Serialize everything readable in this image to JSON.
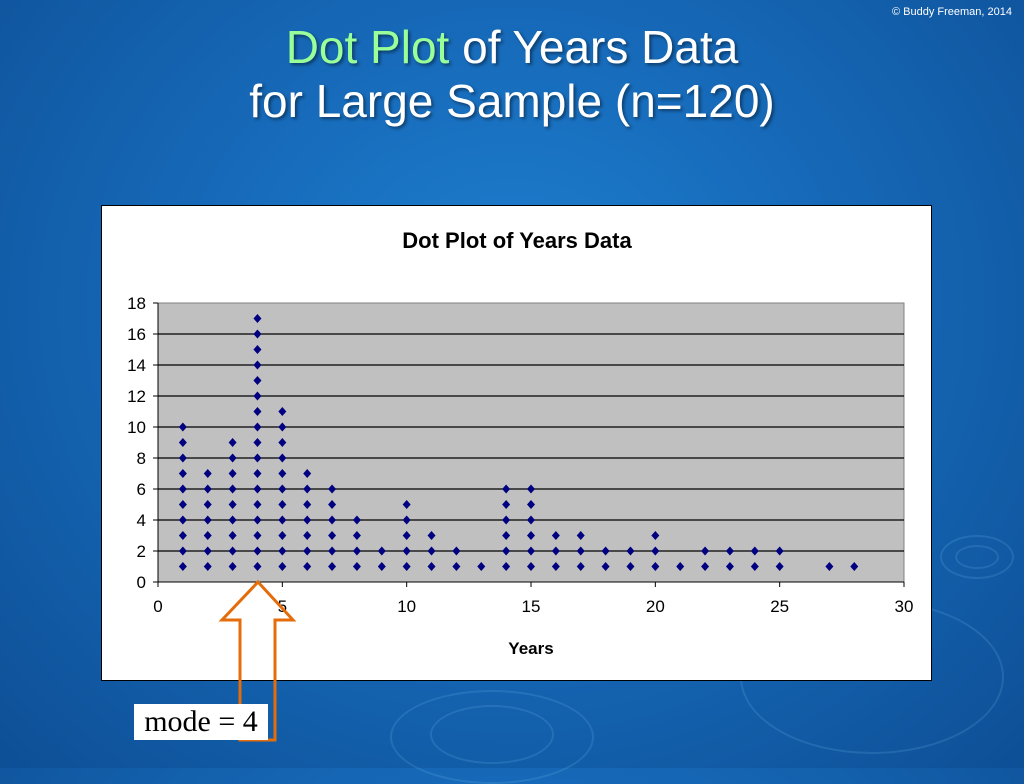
{
  "copyright": "© Buddy Freeman, 2014",
  "slide": {
    "title_highlight": "Dot Plot",
    "title_rest": " of Years Data",
    "title_line2": "for Large Sample (n=120)"
  },
  "annotation": {
    "mode_label": "mode = 4",
    "arrow_color": "#e46c0a"
  },
  "colors": {
    "title_highlight": "#99ff99",
    "plot_area": "#c0c0c0",
    "marker": "#000080"
  },
  "chart_data": {
    "type": "scatter",
    "title": "Dot Plot of Years Data",
    "xlabel": "Years",
    "ylabel": "",
    "xlim": [
      0,
      30
    ],
    "ylim": [
      0,
      18
    ],
    "xticks": [
      0,
      5,
      10,
      15,
      20,
      25,
      30
    ],
    "yticks": [
      0,
      2,
      4,
      6,
      8,
      10,
      12,
      14,
      16,
      18
    ],
    "grid": "horizontal",
    "marker": "diamond",
    "counts": [
      {
        "x": 1,
        "count": 10
      },
      {
        "x": 2,
        "count": 7
      },
      {
        "x": 3,
        "count": 9
      },
      {
        "x": 4,
        "count": 17
      },
      {
        "x": 5,
        "count": 11
      },
      {
        "x": 6,
        "count": 7
      },
      {
        "x": 7,
        "count": 6
      },
      {
        "x": 8,
        "count": 4
      },
      {
        "x": 9,
        "count": 2
      },
      {
        "x": 10,
        "count": 5
      },
      {
        "x": 11,
        "count": 3
      },
      {
        "x": 12,
        "count": 2
      },
      {
        "x": 13,
        "count": 1
      },
      {
        "x": 14,
        "count": 6
      },
      {
        "x": 15,
        "count": 6
      },
      {
        "x": 16,
        "count": 3
      },
      {
        "x": 17,
        "count": 3
      },
      {
        "x": 18,
        "count": 2
      },
      {
        "x": 19,
        "count": 2
      },
      {
        "x": 20,
        "count": 3
      },
      {
        "x": 21,
        "count": 1
      },
      {
        "x": 22,
        "count": 2
      },
      {
        "x": 23,
        "count": 2
      },
      {
        "x": 24,
        "count": 2
      },
      {
        "x": 25,
        "count": 2
      },
      {
        "x": 27,
        "count": 1
      },
      {
        "x": 28,
        "count": 1
      }
    ]
  }
}
